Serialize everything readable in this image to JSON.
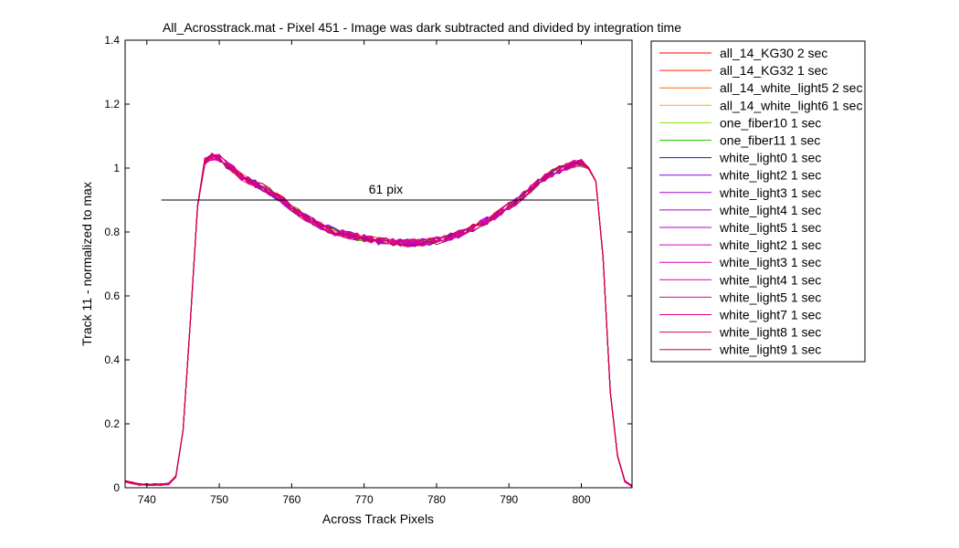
{
  "chart_data": {
    "type": "line",
    "title": "All_Acrosstrack.mat - Pixel 451 - Image was dark subtracted and divided by integration time",
    "xlabel": "Across Track Pixels",
    "ylabel": "Track 11 - normalized to max",
    "xlim": [
      737,
      807
    ],
    "ylim": [
      0,
      1.4
    ],
    "xticks": [
      740,
      750,
      760,
      770,
      780,
      790,
      800
    ],
    "yticks": [
      0,
      0.2,
      0.4,
      0.6,
      0.8,
      1.0,
      1.2,
      1.4
    ],
    "ytick_labels": [
      "0",
      "0.2",
      "0.4",
      "0.6",
      "0.8",
      "1",
      "1.2",
      "1.4"
    ],
    "grid": false,
    "legend_position": "outside-right",
    "x": [
      737,
      738,
      739,
      740,
      741,
      742,
      743,
      744,
      745,
      746,
      747,
      748,
      749,
      750,
      751,
      752,
      753,
      754,
      755,
      756,
      757,
      758,
      759,
      760,
      761,
      762,
      763,
      764,
      765,
      766,
      767,
      768,
      769,
      770,
      771,
      772,
      773,
      774,
      775,
      776,
      777,
      778,
      779,
      780,
      781,
      782,
      783,
      784,
      785,
      786,
      787,
      788,
      789,
      790,
      791,
      792,
      793,
      794,
      795,
      796,
      797,
      798,
      799,
      800,
      801,
      802,
      803,
      804,
      805,
      806,
      807
    ],
    "base_profile": [
      0.02,
      0.015,
      0.01,
      0.01,
      0.01,
      0.01,
      0.012,
      0.035,
      0.18,
      0.52,
      0.88,
      1.02,
      1.035,
      1.03,
      1.01,
      0.995,
      0.975,
      0.96,
      0.95,
      0.94,
      0.925,
      0.91,
      0.895,
      0.875,
      0.86,
      0.845,
      0.832,
      0.82,
      0.81,
      0.8,
      0.795,
      0.79,
      0.785,
      0.78,
      0.776,
      0.772,
      0.77,
      0.768,
      0.767,
      0.766,
      0.766,
      0.767,
      0.77,
      0.773,
      0.778,
      0.785,
      0.793,
      0.803,
      0.813,
      0.823,
      0.835,
      0.85,
      0.865,
      0.88,
      0.895,
      0.915,
      0.935,
      0.955,
      0.97,
      0.985,
      0.995,
      1.005,
      1.012,
      1.015,
      1.0,
      0.96,
      0.72,
      0.3,
      0.1,
      0.02,
      0.005
    ],
    "series": [
      {
        "name": "all_14_KG30 2 sec",
        "color": "#ff0000"
      },
      {
        "name": "all_14_KG32 1 sec",
        "color": "#ff2400"
      },
      {
        "name": "all_14_white_light5 2 sec",
        "color": "#ff6a00"
      },
      {
        "name": "all_14_white_light6 1 sec",
        "color": "#ffaa00"
      },
      {
        "name": "one_fiber10 1 sec",
        "color": "#88e000"
      },
      {
        "name": "one_fiber11 1 sec",
        "color": "#22cc00"
      },
      {
        "name": "white_light0 1 sec",
        "color": "#00308f"
      },
      {
        "name": "white_light2 1 sec",
        "color": "#8a00e6"
      },
      {
        "name": "white_light3 1 sec",
        "color": "#a000e0"
      },
      {
        "name": "white_light4 1 sec",
        "color": "#b400d8"
      },
      {
        "name": "white_light5 1 sec",
        "color": "#c400d0"
      },
      {
        "name": "white_light2 1 sec",
        "color": "#d000c0"
      },
      {
        "name": "white_light3 1 sec",
        "color": "#d800b0"
      },
      {
        "name": "white_light4 1 sec",
        "color": "#e000a0"
      },
      {
        "name": "white_light5 1 sec",
        "color": "#e40090"
      },
      {
        "name": "white_light7 1 sec",
        "color": "#e80080"
      },
      {
        "name": "white_light8 1 sec",
        "color": "#dc0066"
      },
      {
        "name": "white_light9 1 sec",
        "color": "#cc0044"
      }
    ],
    "annotations": [
      {
        "type": "hline",
        "y": 0.9,
        "x_start": 742,
        "x_end": 802,
        "color": "#000000"
      },
      {
        "type": "text",
        "text": "61 pix",
        "x": 773,
        "y": 0.9
      }
    ]
  }
}
